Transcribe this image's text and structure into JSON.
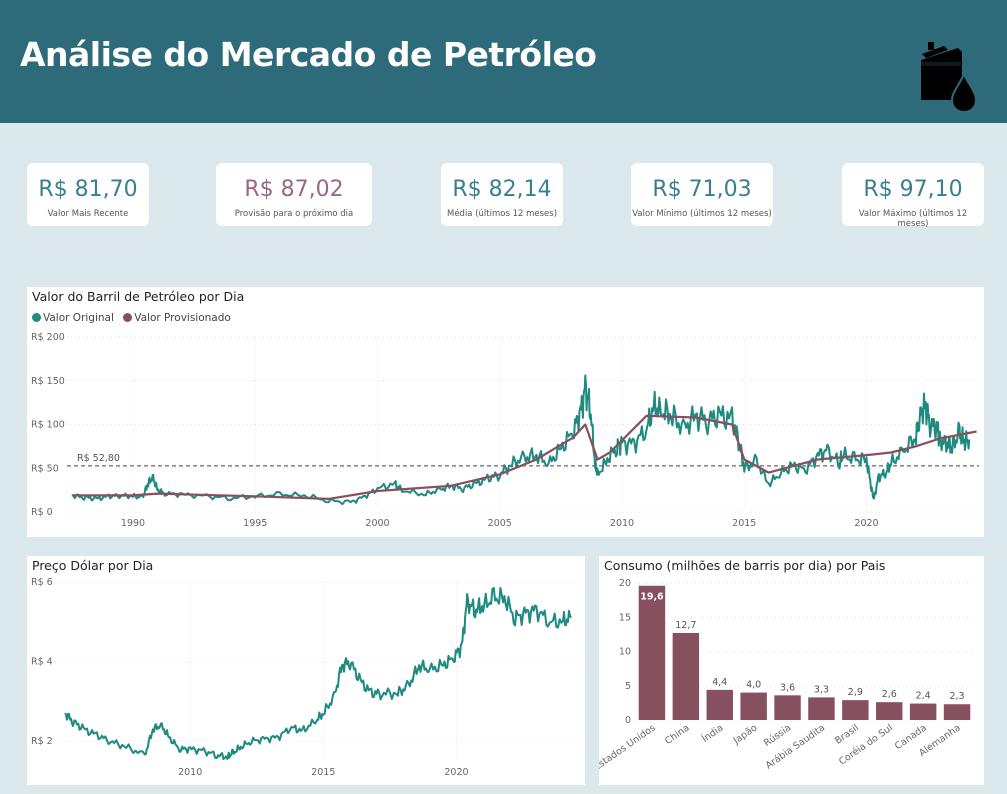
{
  "header": {
    "title": "Análise do Mercado de Petróleo",
    "icon": "oil-barrel-icon"
  },
  "kpis": [
    {
      "value": "R$ 81,70",
      "label": "Valor Mais Recente"
    },
    {
      "value": "R$ 87,02",
      "label": "Provisão para o próximo dia",
      "accent": "#9c6680"
    },
    {
      "value": "R$ 82,14",
      "label": "Média (últimos 12 meses)"
    },
    {
      "value": "R$ 71,03",
      "label": "Valor Mínimo (últimos 12 meses)"
    },
    {
      "value": "R$ 97,10",
      "label": "Valor Máximo (últimos 12 meses)"
    }
  ],
  "colors": {
    "header": "#2d6b7b",
    "teal": "#1f8a80",
    "plum": "#86505f",
    "bar": "#86505f",
    "background": "#dbe8ec"
  },
  "chart_data": [
    {
      "type": "line",
      "title": "Valor do Barril de Petróleo por Dia",
      "legend": [
        "Valor Original",
        "Valor Provisionado"
      ],
      "legend_position": "top-left",
      "y_ticks": [
        "R$ 0",
        "R$ 50",
        "R$ 100",
        "R$ 150",
        "R$ 200"
      ],
      "ylim": [
        0,
        200
      ],
      "x_ticks": [
        "1990",
        "1995",
        "2000",
        "2005",
        "2010",
        "2015",
        "2020"
      ],
      "xlim": [
        1987.3,
        2024.6
      ],
      "reference_line": {
        "value": 52.8,
        "label": "R$ 52,80"
      },
      "grid": true,
      "series": [
        {
          "name": "Valor Original",
          "color": "#1f8a80",
          "x": [
            1987.5,
            1988.0,
            1988.5,
            1989.0,
            1989.5,
            1990.0,
            1990.4,
            1990.6,
            1990.8,
            1991.0,
            1991.3,
            1992.0,
            1993.0,
            1994.0,
            1995.0,
            1996.0,
            1997.0,
            1998.0,
            1998.9,
            1999.5,
            2000.0,
            2000.7,
            2001.0,
            2001.9,
            2002.5,
            2003.0,
            2003.5,
            2004.0,
            2004.5,
            2005.0,
            2005.5,
            2006.0,
            2006.5,
            2007.0,
            2007.5,
            2008.0,
            2008.3,
            2008.5,
            2008.7,
            2008.9,
            2009.0,
            2009.4,
            2009.8,
            2010.0,
            2010.5,
            2011.0,
            2011.3,
            2011.6,
            2012.0,
            2012.5,
            2013.0,
            2013.5,
            2014.0,
            2014.5,
            2014.8,
            2015.0,
            2015.5,
            2016.0,
            2016.5,
            2017.0,
            2017.5,
            2018.0,
            2018.4,
            2018.9,
            2019.0,
            2019.5,
            2020.0,
            2020.2,
            2020.3,
            2020.5,
            2020.8,
            2021.0,
            2021.5,
            2022.0,
            2022.2,
            2022.4,
            2022.6,
            2022.9,
            2023.0,
            2023.3,
            2023.5,
            2023.8,
            2024.0,
            2024.2
          ],
          "values": [
            19,
            17,
            15,
            18,
            19,
            18,
            17,
            32,
            40,
            25,
            21,
            20,
            18,
            16,
            18,
            20,
            19,
            13,
            11,
            18,
            27,
            32,
            25,
            20,
            25,
            30,
            27,
            32,
            38,
            43,
            55,
            62,
            65,
            55,
            72,
            92,
            115,
            140,
            120,
            55,
            42,
            60,
            75,
            78,
            78,
            95,
            120,
            115,
            112,
            95,
            110,
            105,
            110,
            105,
            80,
            50,
            58,
            32,
            45,
            53,
            48,
            65,
            70,
            55,
            65,
            60,
            60,
            28,
            15,
            40,
            45,
            55,
            70,
            85,
            110,
            122,
            100,
            95,
            80,
            80,
            75,
            90,
            80,
            83
          ]
        },
        {
          "name": "Valor Provisionado",
          "color": "#86505f",
          "x": [
            1987.5,
            1990.0,
            1991.0,
            1995.0,
            1998.0,
            2000.0,
            2003.0,
            2005.0,
            2006.5,
            2008.0,
            2008.5,
            2009.0,
            2009.5,
            2011.0,
            2013.0,
            2014.5,
            2015.0,
            2016.0,
            2018.0,
            2020.0,
            2021.0,
            2022.0,
            2023.0,
            2024.5
          ],
          "values": [
            19,
            19,
            21,
            18,
            15,
            24,
            30,
            43,
            60,
            85,
            100,
            60,
            68,
            110,
            108,
            100,
            60,
            45,
            60,
            65,
            68,
            75,
            84,
            92
          ]
        }
      ]
    },
    {
      "type": "line",
      "title": "Preço Dólar por Dia",
      "y_ticks": [
        "R$ 2",
        "R$ 4",
        "R$ 6"
      ],
      "ylim": [
        1.5,
        6
      ],
      "x_ticks": [
        "2010",
        "2015",
        "2020"
      ],
      "xlim": [
        2005.0,
        2024.6
      ],
      "grid": true,
      "series": [
        {
          "name": "Preço Dólar",
          "color": "#1f8a80",
          "x": [
            2005.3,
            2005.6,
            2006.0,
            2006.5,
            2007.0,
            2007.6,
            2008.3,
            2008.6,
            2008.9,
            2009.2,
            2009.6,
            2010.0,
            2010.5,
            2011.0,
            2011.4,
            2011.6,
            2011.9,
            2012.3,
            2012.8,
            2013.3,
            2013.8,
            2014.2,
            2014.7,
            2015.0,
            2015.4,
            2015.7,
            2016.0,
            2016.4,
            2016.8,
            2017.2,
            2017.8,
            2018.2,
            2018.6,
            2019.0,
            2019.5,
            2019.9,
            2020.2,
            2020.4,
            2020.7,
            2021.0,
            2021.4,
            2021.8,
            2022.2,
            2022.6,
            2023.0,
            2023.5,
            2024.0,
            2024.3
          ],
          "values": [
            2.7,
            2.5,
            2.3,
            2.15,
            2.0,
            1.85,
            1.65,
            2.3,
            2.4,
            2.1,
            1.8,
            1.8,
            1.75,
            1.65,
            1.6,
            1.7,
            1.85,
            2.0,
            2.05,
            2.1,
            2.35,
            2.25,
            2.5,
            2.7,
            3.1,
            3.9,
            4.0,
            3.5,
            3.2,
            3.2,
            3.2,
            3.4,
            3.9,
            3.8,
            3.9,
            4.1,
            4.4,
            5.5,
            5.3,
            5.4,
            5.6,
            5.6,
            5.1,
            5.2,
            5.3,
            5.0,
            5.0,
            5.1
          ]
        }
      ]
    },
    {
      "type": "bar",
      "title": "Consumo (milhões de barris por dia) por Pais",
      "categories": [
        "Estados Unidos",
        "China",
        "Índia",
        "Japão",
        "Rússia",
        "Arábia Saudita",
        "Brasil",
        "Coréia do Sul",
        "Canada",
        "Alemanha"
      ],
      "values": [
        19.6,
        12.7,
        4.4,
        4.0,
        3.6,
        3.3,
        2.9,
        2.6,
        2.4,
        2.3
      ],
      "value_labels": [
        "19,6",
        "12,7",
        "4,4",
        "4,0",
        "3,6",
        "3,3",
        "2,9",
        "2,6",
        "2,4",
        "2,3"
      ],
      "y_ticks": [
        "0",
        "5",
        "10",
        "15",
        "20"
      ],
      "ylim": [
        0,
        20
      ],
      "grid": true
    }
  ]
}
